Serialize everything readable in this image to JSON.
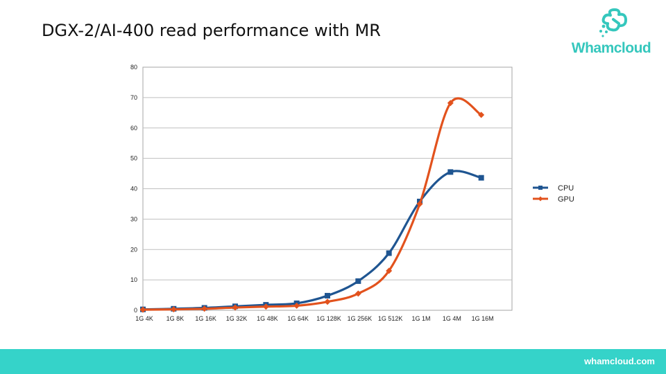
{
  "slide": {
    "title": "DGX-2/AI-400 read performance with MR"
  },
  "logo": {
    "text": "Whamcloud",
    "icon": "whamcloud-logo-icon",
    "color": "#35c7bd"
  },
  "footer": {
    "url": "whamcloud.com",
    "bar_color": "#35d3c9"
  },
  "chart_data": {
    "type": "line",
    "title": "",
    "xlabel": "",
    "ylabel": "",
    "categories": [
      "1G 4K",
      "1G 8K",
      "1G 16K",
      "1G 32K",
      "1G 48K",
      "1G 64K",
      "1G 128K",
      "1G 256K",
      "1G 512K",
      "1G 1M",
      "1G 4M",
      "1G 16M"
    ],
    "ylim": [
      0,
      80
    ],
    "yticks": [
      0,
      10,
      20,
      30,
      40,
      50,
      60,
      70,
      80
    ],
    "grid": true,
    "legend_position": "right",
    "series": [
      {
        "name": "CPU",
        "color": "#1f5591",
        "marker": "square",
        "values": [
          0.3,
          0.5,
          0.8,
          1.3,
          1.8,
          2.3,
          4.8,
          9.6,
          18.8,
          35.8,
          45.5,
          43.6
        ]
      },
      {
        "name": "GPU",
        "color": "#e2521d",
        "marker": "diamond",
        "values": [
          0.2,
          0.3,
          0.5,
          0.9,
          1.2,
          1.5,
          2.8,
          5.5,
          13.0,
          35.0,
          68.2,
          64.3
        ]
      }
    ]
  }
}
